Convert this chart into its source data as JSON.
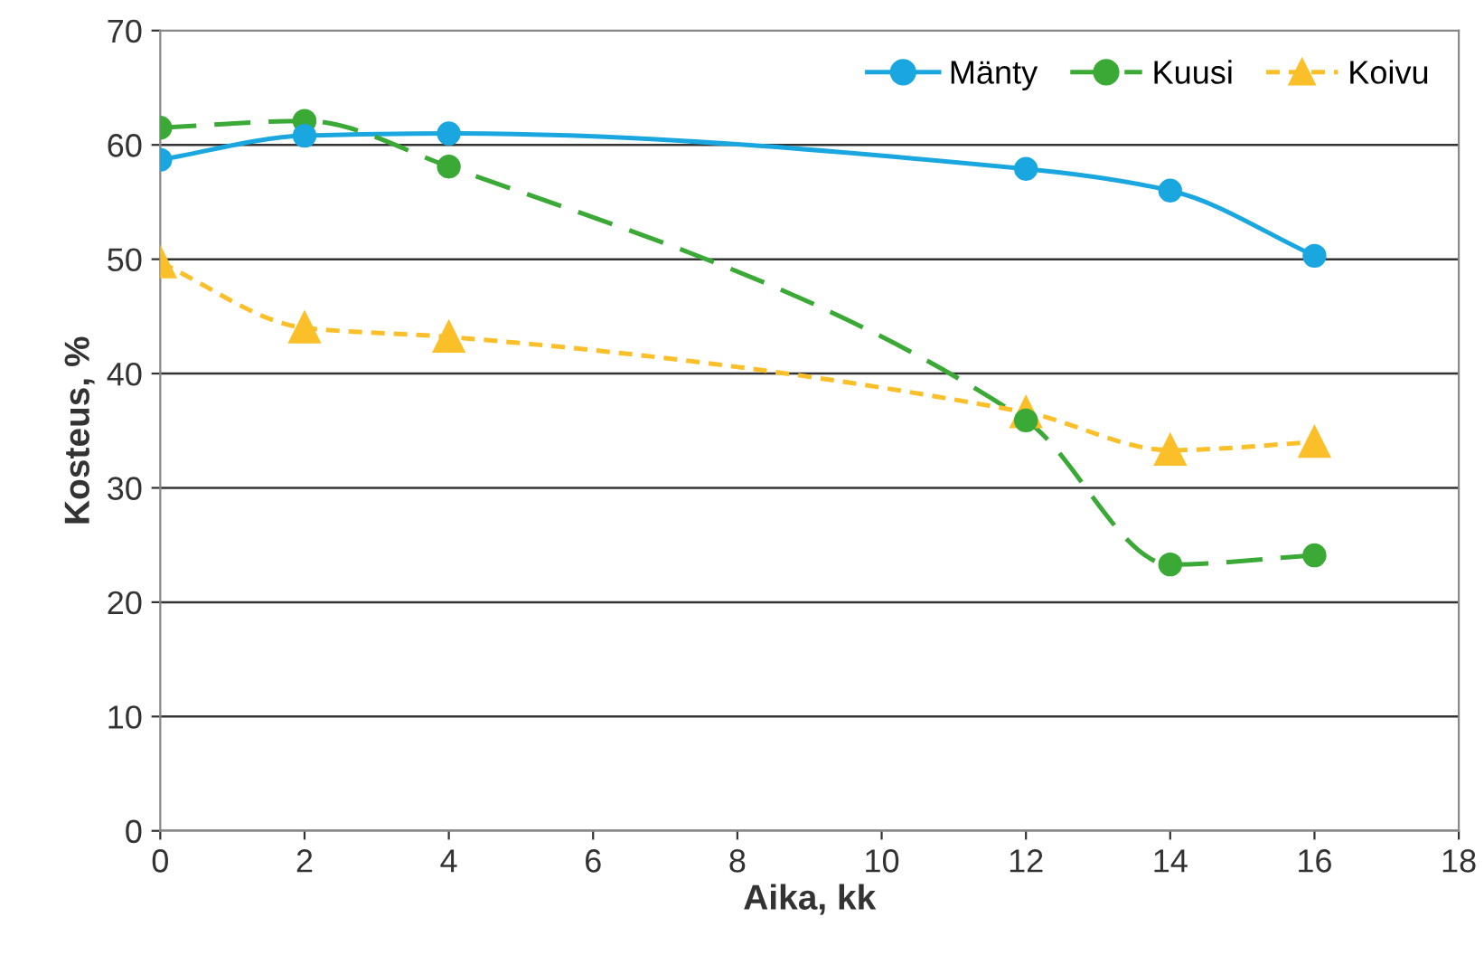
{
  "chart_data": {
    "type": "line",
    "xlabel": "Aika, kk",
    "ylabel": "Kosteus, %",
    "x": [
      0,
      2,
      4,
      12,
      14,
      16
    ],
    "xlim": [
      0,
      18
    ],
    "xticks": [
      0,
      2,
      4,
      6,
      8,
      10,
      12,
      14,
      16,
      18
    ],
    "ylim": [
      0,
      70
    ],
    "yticks": [
      0,
      10,
      20,
      30,
      40,
      50,
      60,
      70
    ],
    "grid": "y",
    "legend": "top right",
    "series": [
      {
        "name": "Mänty",
        "color": "#1aa7e0",
        "marker": "circle",
        "line_style": "solid",
        "values": [
          58.7,
          60.8,
          61.0,
          57.9,
          56.0,
          50.3
        ]
      },
      {
        "name": "Kuusi",
        "color": "#3aa935",
        "marker": "circle",
        "line_style": "dashed",
        "values": [
          61.5,
          62.1,
          58.1,
          35.9,
          23.3,
          24.1
        ]
      },
      {
        "name": "Koivu",
        "color": "#fbbf2a",
        "marker": "triangle",
        "line_style": "dotted",
        "values": [
          49.7,
          44.0,
          43.2,
          36.6,
          33.3,
          34.0
        ]
      }
    ]
  }
}
